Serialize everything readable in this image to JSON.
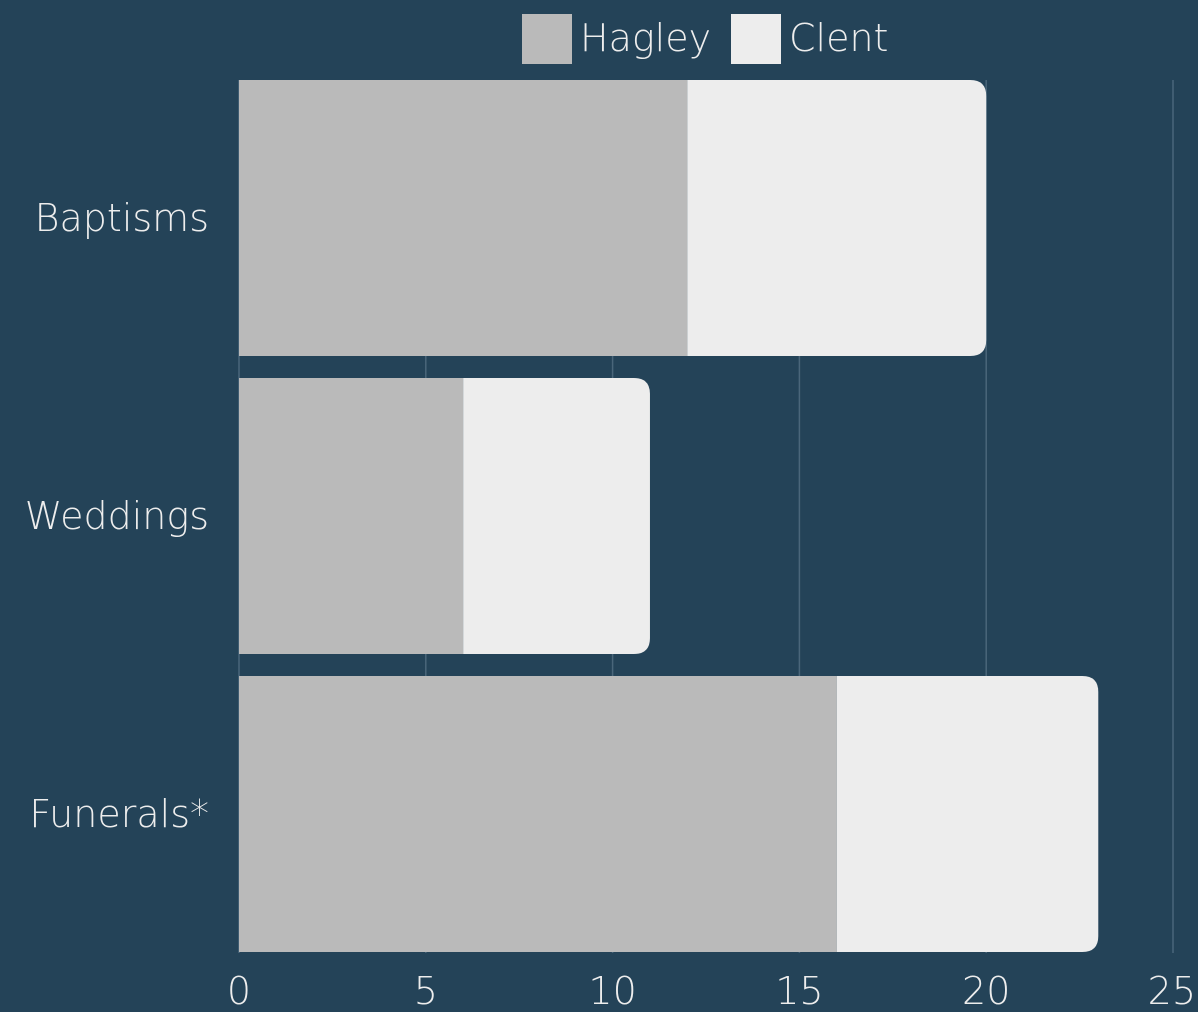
{
  "chart_data": {
    "type": "bar",
    "orientation": "horizontal",
    "stacked": true,
    "categories": [
      "Baptisms",
      "Weddings",
      "Funerals*"
    ],
    "series": [
      {
        "name": "Hagley",
        "values": [
          12,
          6,
          16
        ],
        "color": "#bababa"
      },
      {
        "name": "Clent",
        "values": [
          8,
          5,
          7
        ],
        "color": "#ededed"
      }
    ],
    "xlim": [
      0,
      25
    ],
    "xticks": [
      0,
      5,
      10,
      15,
      20,
      25
    ],
    "grid": true,
    "legend_position": "top",
    "title": "",
    "xlabel": "",
    "ylabel": ""
  },
  "colors": {
    "background": "#244358",
    "text": "#ededed",
    "grid": "#4a667a"
  }
}
